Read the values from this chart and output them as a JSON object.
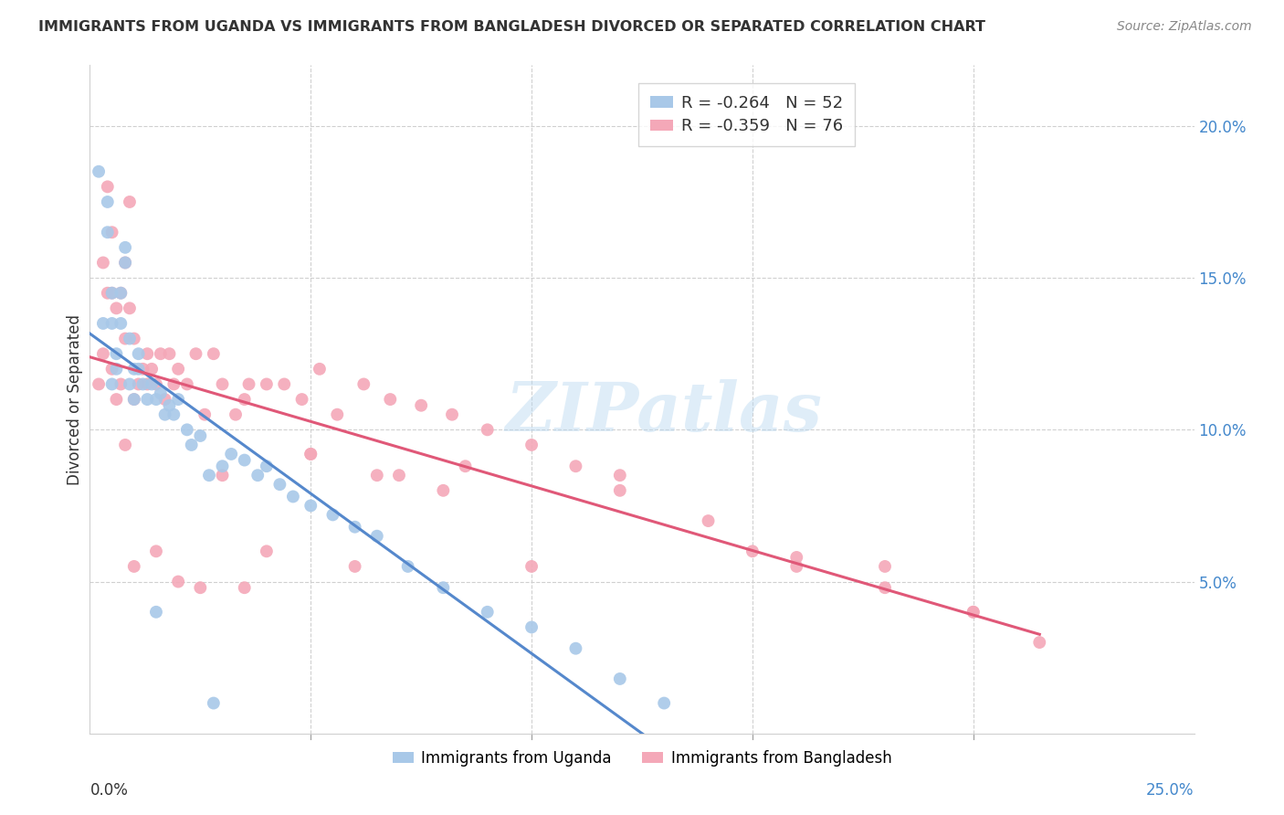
{
  "title": "IMMIGRANTS FROM UGANDA VS IMMIGRANTS FROM BANGLADESH DIVORCED OR SEPARATED CORRELATION CHART",
  "source": "Source: ZipAtlas.com",
  "ylabel": "Divorced or Separated",
  "legend_uganda_r": "-0.264",
  "legend_uganda_n": "52",
  "legend_bangladesh_r": "-0.359",
  "legend_bangladesh_n": "76",
  "uganda_color": "#a8c8e8",
  "bangladesh_color": "#f4a8b8",
  "regression_uganda_color": "#5588cc",
  "regression_bangladesh_color": "#e05878",
  "background_color": "#ffffff",
  "grid_color": "#d0d0d0",
  "watermark": "ZIPatlas",
  "xlim": [
    0.0,
    0.25
  ],
  "ylim": [
    0.0,
    0.22
  ],
  "right_yticks": [
    0.05,
    0.1,
    0.15,
    0.2
  ],
  "right_yticklabels": [
    "5.0%",
    "10.0%",
    "15.0%",
    "20.0%"
  ],
  "uganda_x": [
    0.002,
    0.003,
    0.004,
    0.004,
    0.005,
    0.005,
    0.005,
    0.006,
    0.006,
    0.007,
    0.007,
    0.008,
    0.008,
    0.009,
    0.009,
    0.01,
    0.01,
    0.011,
    0.011,
    0.012,
    0.013,
    0.014,
    0.015,
    0.016,
    0.017,
    0.018,
    0.019,
    0.02,
    0.022,
    0.023,
    0.025,
    0.027,
    0.03,
    0.032,
    0.035,
    0.038,
    0.04,
    0.043,
    0.046,
    0.05,
    0.055,
    0.06,
    0.065,
    0.072,
    0.08,
    0.09,
    0.1,
    0.11,
    0.12,
    0.13,
    0.015,
    0.028
  ],
  "uganda_y": [
    0.185,
    0.135,
    0.165,
    0.175,
    0.145,
    0.115,
    0.135,
    0.12,
    0.125,
    0.145,
    0.135,
    0.16,
    0.155,
    0.13,
    0.115,
    0.12,
    0.11,
    0.12,
    0.125,
    0.115,
    0.11,
    0.115,
    0.11,
    0.112,
    0.105,
    0.108,
    0.105,
    0.11,
    0.1,
    0.095,
    0.098,
    0.085,
    0.088,
    0.092,
    0.09,
    0.085,
    0.088,
    0.082,
    0.078,
    0.075,
    0.072,
    0.068,
    0.065,
    0.055,
    0.048,
    0.04,
    0.035,
    0.028,
    0.018,
    0.01,
    0.04,
    0.01
  ],
  "bangladesh_x": [
    0.002,
    0.003,
    0.003,
    0.004,
    0.004,
    0.005,
    0.005,
    0.005,
    0.006,
    0.006,
    0.007,
    0.007,
    0.008,
    0.008,
    0.009,
    0.009,
    0.01,
    0.01,
    0.011,
    0.012,
    0.013,
    0.013,
    0.014,
    0.015,
    0.016,
    0.017,
    0.018,
    0.019,
    0.02,
    0.022,
    0.024,
    0.026,
    0.028,
    0.03,
    0.033,
    0.036,
    0.04,
    0.044,
    0.048,
    0.052,
    0.056,
    0.062,
    0.068,
    0.075,
    0.082,
    0.09,
    0.1,
    0.11,
    0.12,
    0.14,
    0.16,
    0.18,
    0.2,
    0.215,
    0.035,
    0.05,
    0.065,
    0.08,
    0.12,
    0.16,
    0.2,
    0.01,
    0.02,
    0.03,
    0.04,
    0.06,
    0.1,
    0.18,
    0.15,
    0.05,
    0.07,
    0.085,
    0.035,
    0.025,
    0.015,
    0.008
  ],
  "bangladesh_y": [
    0.115,
    0.125,
    0.155,
    0.18,
    0.145,
    0.165,
    0.145,
    0.12,
    0.14,
    0.11,
    0.145,
    0.115,
    0.155,
    0.13,
    0.175,
    0.14,
    0.13,
    0.11,
    0.115,
    0.12,
    0.125,
    0.115,
    0.12,
    0.115,
    0.125,
    0.11,
    0.125,
    0.115,
    0.12,
    0.115,
    0.125,
    0.105,
    0.125,
    0.115,
    0.105,
    0.115,
    0.115,
    0.115,
    0.11,
    0.12,
    0.105,
    0.115,
    0.11,
    0.108,
    0.105,
    0.1,
    0.095,
    0.088,
    0.08,
    0.07,
    0.055,
    0.048,
    0.04,
    0.03,
    0.11,
    0.092,
    0.085,
    0.08,
    0.085,
    0.058,
    0.04,
    0.055,
    0.05,
    0.085,
    0.06,
    0.055,
    0.055,
    0.055,
    0.06,
    0.092,
    0.085,
    0.088,
    0.048,
    0.048,
    0.06,
    0.095
  ]
}
